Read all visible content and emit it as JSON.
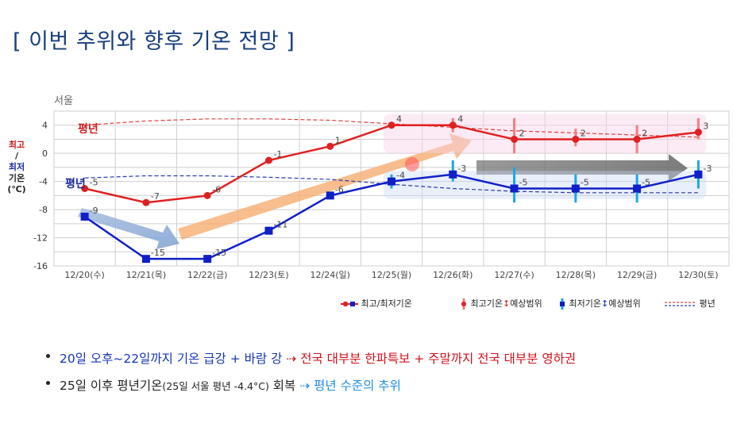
{
  "title": "[ 이번 추위와 향후 기온 전망 ]",
  "y_axis_label": {
    "max": "최고",
    "sep": "/",
    "min": "최저",
    "unit1": "기온",
    "unit2": "(℃)"
  },
  "annotations": {
    "normal_high": "평년",
    "normal_low": "평년"
  },
  "legend": {
    "observed": "최고/최저기온",
    "max_range_a": "최고기온",
    "max_range_b": "예상범위",
    "min_range_a": "최저기온",
    "min_range_b": "예상범위",
    "normal": "평년"
  },
  "bullets": [
    {
      "text1": "20일 오후~22일까지 기온 급강 + 바람 강",
      "arrow": " ⇢ ",
      "text2": "전국 대부분 한파특보 + 주말까지 전국 대부분 영하권"
    },
    {
      "text1": "25일 이후 평년기온",
      "text_small": "(25일 서울 평년 -4.4°C)",
      "text1b": " 회복",
      "arrow": " ⇢ ",
      "text2": "평년 수준의 추위"
    }
  ],
  "colors": {
    "max": "#e02020",
    "min": "#1020c8",
    "range_max": "#f08080",
    "range_min": "#18a8e8",
    "grid": "#cfcfcf",
    "title": "#163e7c"
  },
  "chart_data": {
    "type": "line",
    "title": "서울",
    "categories": [
      "12/20(수)",
      "12/21(목)",
      "12/22(금)",
      "12/23(토)",
      "12/24(일)",
      "12/25(월)",
      "12/26(화)",
      "12/27(수)",
      "12/28(목)",
      "12/29(금)",
      "12/30(토)"
    ],
    "ylim": [
      -16,
      6
    ],
    "yticks": [
      4,
      0,
      -4,
      -8,
      -12,
      -16
    ],
    "series": [
      {
        "name": "최고기온",
        "values": [
          -5,
          -7,
          -6,
          -1,
          1,
          4,
          4,
          2,
          2,
          2,
          3
        ],
        "labels": [
          "-5",
          "-7",
          "-6",
          "-1",
          "1",
          "4",
          "4",
          "2",
          "2",
          "2",
          "3"
        ]
      },
      {
        "name": "최저기온",
        "values": [
          -9,
          -15,
          -15,
          -11,
          -6,
          -4,
          -3,
          -5,
          -5,
          -5,
          -3
        ],
        "labels": [
          "-9",
          "-15",
          "-15",
          "-11",
          "-6",
          "-4",
          "-3",
          "-5",
          "-5",
          "-5",
          "-3"
        ]
      }
    ],
    "max_range": [
      null,
      null,
      null,
      null,
      null,
      null,
      [
        3,
        5
      ],
      [
        0,
        5
      ],
      [
        1,
        3.5
      ],
      [
        0,
        4
      ],
      [
        2,
        5
      ]
    ],
    "min_range": [
      null,
      null,
      null,
      null,
      null,
      [
        -5,
        -3
      ],
      [
        -4,
        -1
      ],
      [
        -7,
        -2
      ],
      [
        -7,
        -3
      ],
      [
        -7,
        -3
      ],
      [
        -5,
        -1
      ]
    ],
    "normal_max": [
      4,
      4.6,
      4.9,
      4.9,
      4.7,
      4.2,
      3.7,
      3.2,
      2.9,
      2.6,
      2.3
    ],
    "normal_min": [
      -3.5,
      -3.2,
      -3.2,
      -3.4,
      -3.7,
      -4.4,
      -5.0,
      -5.4,
      -5.6,
      -5.6,
      -5.6
    ]
  }
}
